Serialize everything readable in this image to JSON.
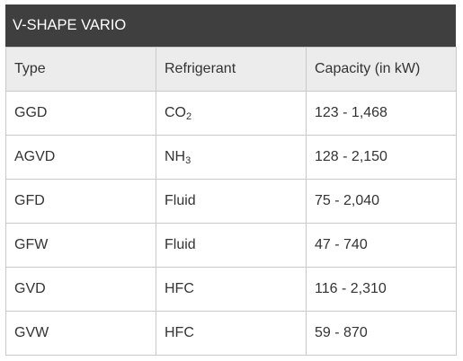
{
  "title": "V-SHAPE VARIO",
  "headers": [
    "Type",
    "Refrigerant",
    "Capacity (in kW)"
  ],
  "rows": [
    {
      "type": "GGD",
      "refrigerant": {
        "base": "CO",
        "sub": "2"
      },
      "capacity": "123 - 1,468"
    },
    {
      "type": "AGVD",
      "refrigerant": {
        "base": "NH",
        "sub": "3"
      },
      "capacity": "128 - 2,150"
    },
    {
      "type": "GFD",
      "refrigerant": {
        "base": "Fluid",
        "sub": ""
      },
      "capacity": "75 - 2,040"
    },
    {
      "type": "GFW",
      "refrigerant": {
        "base": "Fluid",
        "sub": ""
      },
      "capacity": "47 - 740"
    },
    {
      "type": "GVD",
      "refrigerant": {
        "base": "HFC",
        "sub": ""
      },
      "capacity": "116 - 2,310"
    },
    {
      "type": "GVW",
      "refrigerant": {
        "base": "HFC",
        "sub": ""
      },
      "capacity": "59 - 870"
    }
  ]
}
